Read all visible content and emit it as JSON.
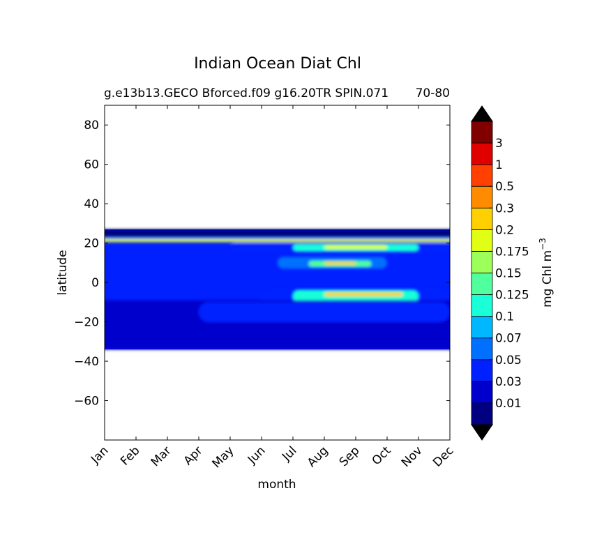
{
  "chart_data": {
    "type": "heatmap",
    "title": "Indian Ocean Diat Chl",
    "subtitle": "g.e13b13.GECO Bforced.f09 g16.20TR SPIN.071",
    "subtitle_right": "70-80",
    "xlabel": "month",
    "ylabel": "latitude",
    "x_categories": [
      "Jan",
      "Feb",
      "Mar",
      "Apr",
      "May",
      "Jun",
      "Jul",
      "Aug",
      "Sep",
      "Oct",
      "Nov",
      "Dec"
    ],
    "ylim": [
      -80,
      90
    ],
    "y_ticks": [
      80,
      60,
      40,
      20,
      0,
      -20,
      -40,
      -60
    ],
    "y_tick_labels": [
      "80",
      "60",
      "40",
      "20",
      "0",
      "−20",
      "−40",
      "−60"
    ],
    "data_lat_range": [
      -34,
      27
    ],
    "colorbar": {
      "label": "mg Chl m",
      "label_exponent": "−3",
      "extend": "both",
      "tick_labels": [
        "0.01",
        "0.03",
        "0.05",
        "0.07",
        "0.1",
        "0.125",
        "0.15",
        "0.175",
        "0.2",
        "0.3",
        "0.5",
        "1",
        "3"
      ],
      "colors": [
        "#000080",
        "#0000cd",
        "#0020ff",
        "#0070ff",
        "#00b8ff",
        "#19ffd8",
        "#50ff9e",
        "#9cff5a",
        "#e0ff14",
        "#ffd000",
        "#ff8c00",
        "#ff4000",
        "#e00000",
        "#800000"
      ],
      "under_color": "#000000",
      "over_color": "#000000"
    },
    "regions": [
      {
        "lat": [
          23,
          27
        ],
        "months": [
          0,
          11
        ],
        "level": 0
      },
      {
        "lat": [
          21,
          23
        ],
        "months": [
          0,
          11
        ],
        "level": 3
      },
      {
        "lat": [
          20.5,
          22
        ],
        "months": [
          0,
          11
        ],
        "level": 8
      },
      {
        "lat": [
          15,
          20
        ],
        "months": [
          4,
          11
        ],
        "level": 2
      },
      {
        "lat": [
          16,
          19.5
        ],
        "months": [
          6,
          10
        ],
        "level": 5
      },
      {
        "lat": [
          17,
          19
        ],
        "months": [
          7,
          9
        ],
        "level": 8
      },
      {
        "lat": [
          7,
          13
        ],
        "months": [
          5.5,
          9
        ],
        "level": 3
      },
      {
        "lat": [
          8,
          11
        ],
        "months": [
          6.5,
          8.5
        ],
        "level": 6
      },
      {
        "lat": [
          9,
          10.5
        ],
        "months": [
          7,
          8
        ],
        "level": 9
      },
      {
        "lat": [
          -12,
          -3
        ],
        "months": [
          5,
          11
        ],
        "level": 2
      },
      {
        "lat": [
          -10,
          -4
        ],
        "months": [
          6,
          10
        ],
        "level": 5
      },
      {
        "lat": [
          -7,
          -5
        ],
        "months": [
          7,
          9.5
        ],
        "level": 9
      },
      {
        "lat": [
          -34,
          -9
        ],
        "months": [
          0,
          11
        ],
        "level": 1
      },
      {
        "lat": [
          -20,
          -10
        ],
        "months": [
          3,
          11
        ],
        "level": 2
      },
      {
        "lat": [
          -34,
          -28
        ],
        "months": [
          0,
          11
        ],
        "level": 1
      }
    ]
  }
}
